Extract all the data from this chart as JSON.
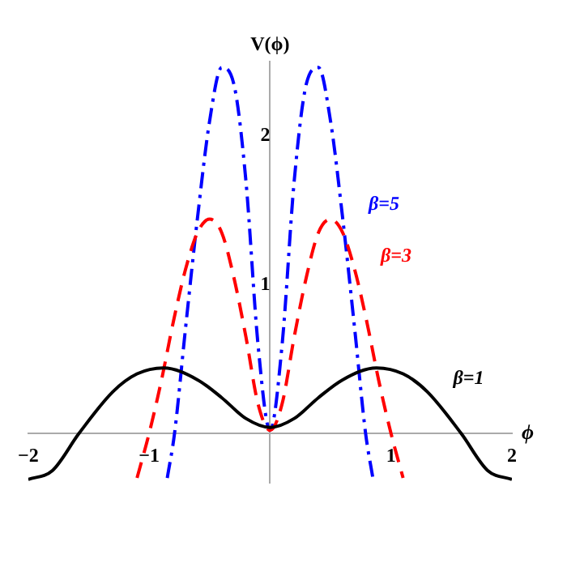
{
  "chart_data": {
    "type": "line",
    "xlabel": "ϕ",
    "ylabel": "V(ϕ)",
    "xlim": [
      -2,
      2
    ],
    "ylim": [
      -0.33,
      2.5
    ],
    "xticks": [
      -2,
      -1,
      1,
      2
    ],
    "yticks": [
      1,
      2
    ],
    "grid": false,
    "legend": false,
    "marker": "none",
    "series": [
      {
        "name": "β=1",
        "color": "#000000",
        "line_style": "solid",
        "x": [
          -2,
          -1.8,
          -1.58,
          -1.3,
          -1.1,
          -0.88,
          -0.6,
          -0.4,
          -0.2,
          0,
          0.2,
          0.4,
          0.6,
          0.88,
          1.1,
          1.3,
          1.58,
          1.8,
          2
        ],
        "values": [
          -0.31,
          -0.25,
          0,
          0.28,
          0.4,
          0.44,
          0.36,
          0.24,
          0.1,
          0.04,
          0.1,
          0.24,
          0.36,
          0.44,
          0.4,
          0.28,
          0,
          -0.25,
          -0.31
        ]
      },
      {
        "name": "β=3",
        "color": "#ff0000",
        "line_style": "dashed",
        "x": [
          -1.1,
          -1,
          -0.9,
          -0.8,
          -0.7,
          -0.6,
          -0.5,
          -0.4,
          -0.3,
          -0.2,
          -0.1,
          0,
          0.1,
          0.2,
          0.3,
          0.4,
          0.5,
          0.6,
          0.7,
          0.8,
          0.9,
          1,
          1.1
        ],
        "values": [
          -0.3,
          0,
          0.35,
          0.75,
          1.1,
          1.35,
          1.44,
          1.35,
          1.05,
          0.65,
          0.2,
          0.02,
          0.2,
          0.65,
          1.05,
          1.35,
          1.44,
          1.35,
          1.1,
          0.75,
          0.35,
          0,
          -0.3
        ]
      },
      {
        "name": "β=5",
        "color": "#0000ff",
        "line_style": "dashdot",
        "x": [
          -0.85,
          -0.79,
          -0.7,
          -0.6,
          -0.5,
          -0.4,
          -0.3,
          -0.2,
          -0.1,
          0,
          0.1,
          0.2,
          0.3,
          0.4,
          0.5,
          0.6,
          0.7,
          0.79,
          0.85
        ],
        "values": [
          -0.3,
          0,
          0.7,
          1.45,
          2.1,
          2.46,
          2.35,
          1.7,
          0.6,
          0.02,
          0.6,
          1.7,
          2.35,
          2.46,
          2.1,
          1.45,
          0.7,
          0,
          -0.3
        ]
      }
    ]
  }
}
